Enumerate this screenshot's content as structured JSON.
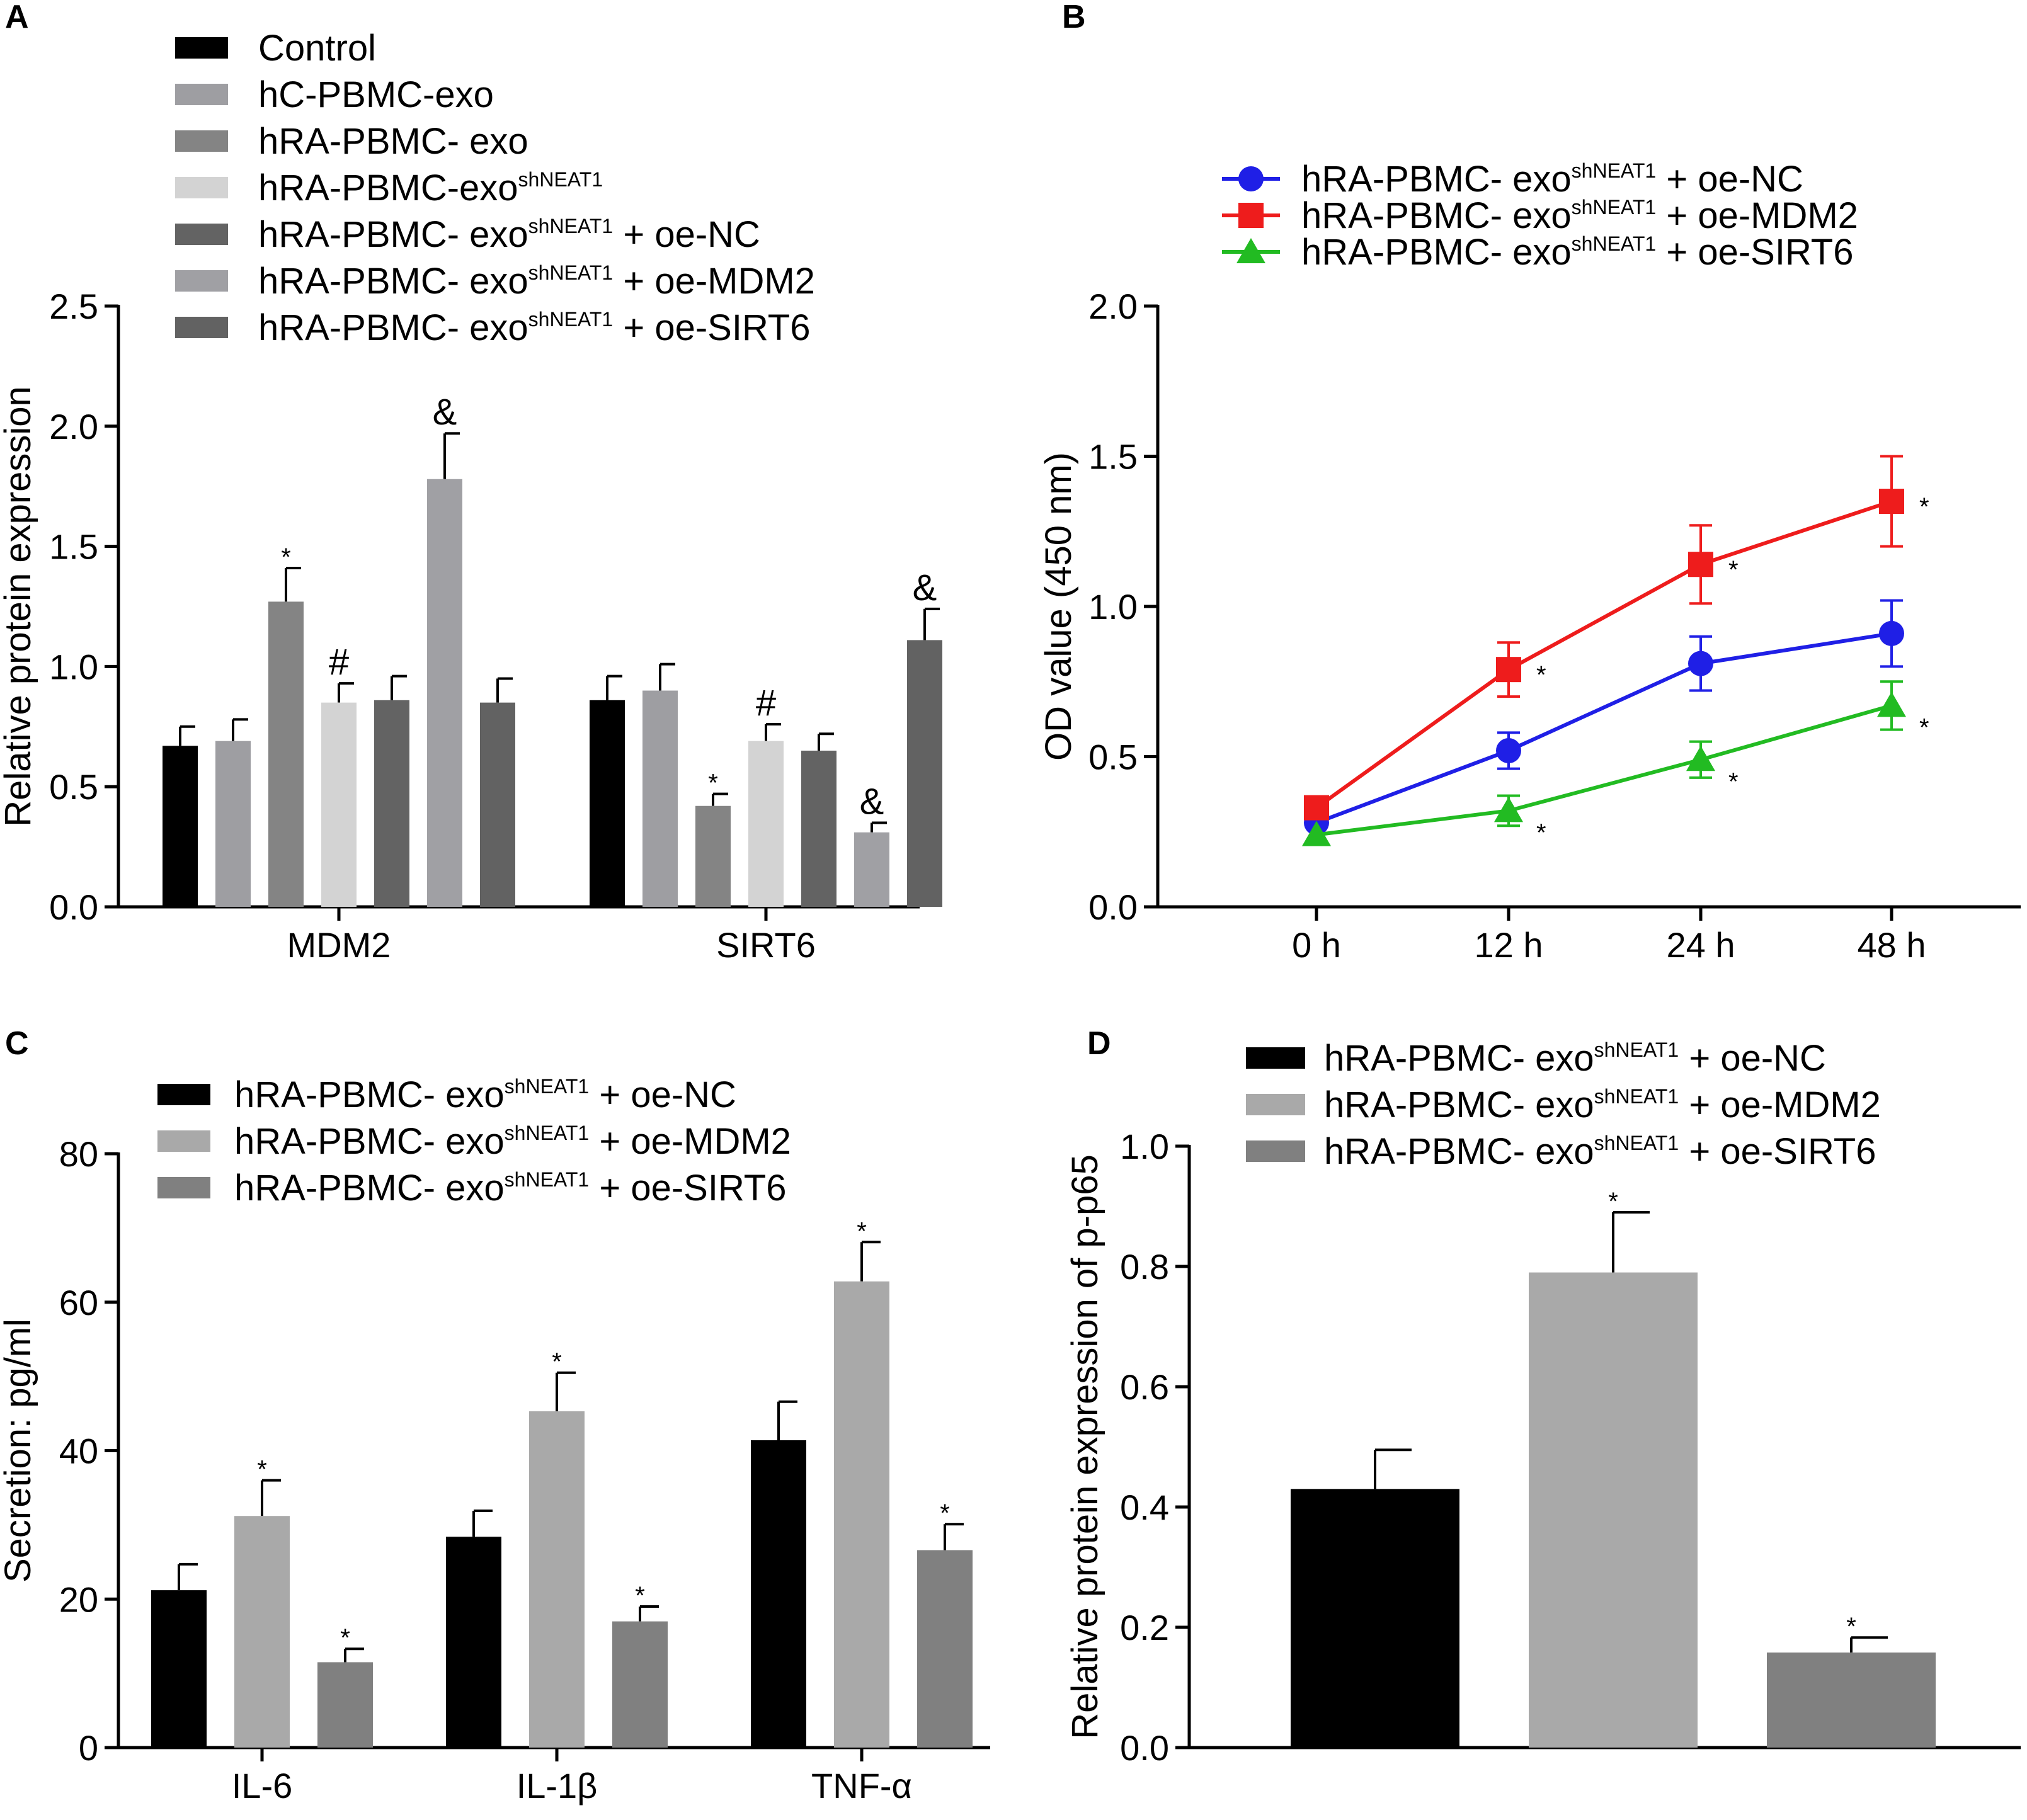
{
  "figure": {
    "panels": [
      "A",
      "B",
      "C",
      "D"
    ]
  },
  "chart_data": [
    {
      "id": "A",
      "type": "bar",
      "ylabel": "Relative protein expression",
      "xlabel": "",
      "ylim": [
        0,
        2.5
      ],
      "yticks": [
        "0.0",
        "0.5",
        "1.0",
        "1.5",
        "2.0",
        "2.5"
      ],
      "categories": [
        "MDM2",
        "SIRT6"
      ],
      "series": [
        {
          "name": "Control",
          "sup": "",
          "suffix": "",
          "color": "#000000",
          "values": [
            0.67,
            0.86
          ],
          "errors": [
            0.08,
            0.1
          ],
          "annotations": [
            "",
            ""
          ]
        },
        {
          "name": "hC-PBMC-exo",
          "sup": "",
          "suffix": "",
          "color": "#9e9ea2",
          "values": [
            0.69,
            0.9
          ],
          "errors": [
            0.09,
            0.11
          ],
          "annotations": [
            "",
            ""
          ]
        },
        {
          "name": "hRA-PBMC- exo",
          "sup": "",
          "suffix": "",
          "color": "#848484",
          "values": [
            1.27,
            0.42
          ],
          "errors": [
            0.14,
            0.05
          ],
          "annotations": [
            "*",
            "*"
          ]
        },
        {
          "name": "hRA-PBMC-exo",
          "sup": "shNEAT1",
          "suffix": "",
          "color": "#d3d3d3",
          "values": [
            0.85,
            0.69
          ],
          "errors": [
            0.08,
            0.07
          ],
          "annotations": [
            "#",
            "#"
          ]
        },
        {
          "name": "hRA-PBMC- exo",
          "sup": "shNEAT1",
          "suffix": " + oe-NC",
          "color": "#636363",
          "values": [
            0.86,
            0.65
          ],
          "errors": [
            0.1,
            0.07
          ],
          "annotations": [
            "",
            ""
          ]
        },
        {
          "name": "hRA-PBMC- exo",
          "sup": "shNEAT1",
          "suffix": " + oe-MDM2",
          "color": "#a0a0a4",
          "values": [
            1.78,
            0.31
          ],
          "errors": [
            0.19,
            0.04
          ],
          "annotations": [
            "&",
            "&"
          ]
        },
        {
          "name": "hRA-PBMC- exo",
          "sup": "shNEAT1",
          "suffix": " + oe-SIRT6",
          "color": "#626262",
          "values": [
            0.85,
            1.11
          ],
          "errors": [
            0.1,
            0.13
          ],
          "annotations": [
            "",
            "&"
          ]
        }
      ],
      "legend": "top-left"
    },
    {
      "id": "B",
      "type": "line",
      "ylabel": "OD value (450 nm)",
      "xlabel": "",
      "ylim": [
        0,
        2.0
      ],
      "yticks": [
        "0.0",
        "0.5",
        "1.0",
        "1.5",
        "2.0"
      ],
      "categories": [
        "0 h",
        "12 h",
        "24 h",
        "48 h"
      ],
      "series": [
        {
          "name": "hRA-PBMC- exo",
          "sup": "shNEAT1",
          "suffix": " + oe-NC",
          "color": "#1f1fe6",
          "marker": "circle",
          "values": [
            0.28,
            0.52,
            0.81,
            0.91
          ],
          "errors": [
            0.0,
            0.06,
            0.09,
            0.11
          ],
          "annotations": [
            "",
            "",
            "",
            ""
          ]
        },
        {
          "name": "hRA-PBMC- exo",
          "sup": "shNEAT1",
          "suffix": " + oe-MDM2",
          "color": "#ee1c1c",
          "marker": "square",
          "values": [
            0.33,
            0.79,
            1.14,
            1.35
          ],
          "errors": [
            0.0,
            0.09,
            0.13,
            0.15
          ],
          "annotations": [
            "",
            "*",
            "*",
            "*"
          ]
        },
        {
          "name": "hRA-PBMC- exo",
          "sup": "shNEAT1",
          "suffix": " + oe-SIRT6",
          "color": "#22bb22",
          "marker": "triangle",
          "values": [
            0.24,
            0.32,
            0.49,
            0.67
          ],
          "errors": [
            0.0,
            0.05,
            0.06,
            0.08
          ],
          "annotations": [
            "",
            "*",
            "*",
            "*"
          ]
        }
      ],
      "legend": "top-left"
    },
    {
      "id": "C",
      "type": "bar",
      "ylabel": "Secretion: pg/ml",
      "xlabel": "",
      "ylim": [
        0,
        80
      ],
      "yticks": [
        "0",
        "20",
        "40",
        "60",
        "80"
      ],
      "categories": [
        "IL-6",
        "IL-1β",
        "TNF-α"
      ],
      "series": [
        {
          "name": "hRA-PBMC- exo",
          "sup": "shNEAT1",
          "suffix": " + oe-NC",
          "color": "#000000",
          "values": [
            21.2,
            28.4,
            41.4
          ],
          "errors": [
            3.5,
            3.5,
            5.2
          ],
          "annotations": [
            "",
            "",
            ""
          ]
        },
        {
          "name": "hRA-PBMC- exo",
          "sup": "shNEAT1",
          "suffix": " + oe-MDM2",
          "color": "#a9a9a9",
          "values": [
            31.2,
            45.3,
            62.8
          ],
          "errors": [
            4.8,
            5.2,
            5.3
          ],
          "annotations": [
            "*",
            "*",
            "*"
          ]
        },
        {
          "name": "hRA-PBMC- exo",
          "sup": "shNEAT1",
          "suffix": " + oe-SIRT6",
          "color": "#808080",
          "values": [
            11.5,
            17.0,
            26.6
          ],
          "errors": [
            1.8,
            2.0,
            3.5
          ],
          "annotations": [
            "*",
            "*",
            "*"
          ]
        }
      ],
      "legend": "top-left"
    },
    {
      "id": "D",
      "type": "bar",
      "ylabel": "Relative protein expression of p-p65",
      "xlabel": "",
      "ylim": [
        0,
        1.0
      ],
      "yticks": [
        "0.0",
        "0.2",
        "0.4",
        "0.6",
        "0.8",
        "1.0"
      ],
      "categories": [
        ""
      ],
      "series": [
        {
          "name": "hRA-PBMC- exo",
          "sup": "shNEAT1",
          "suffix": " + oe-NC",
          "color": "#000000",
          "values": [
            0.43
          ],
          "errors": [
            0.065
          ],
          "annotations": [
            ""
          ]
        },
        {
          "name": "hRA-PBMC- exo",
          "sup": "shNEAT1",
          "suffix": " + oe-MDM2",
          "color": "#a9a9a9",
          "values": [
            0.79
          ],
          "errors": [
            0.1
          ],
          "annotations": [
            "*"
          ]
        },
        {
          "name": "hRA-PBMC- exo",
          "sup": "shNEAT1",
          "suffix": " + oe-SIRT6",
          "color": "#808080",
          "values": [
            0.158
          ],
          "errors": [
            0.025
          ],
          "annotations": [
            "*"
          ]
        }
      ],
      "legend": "top-left"
    }
  ]
}
